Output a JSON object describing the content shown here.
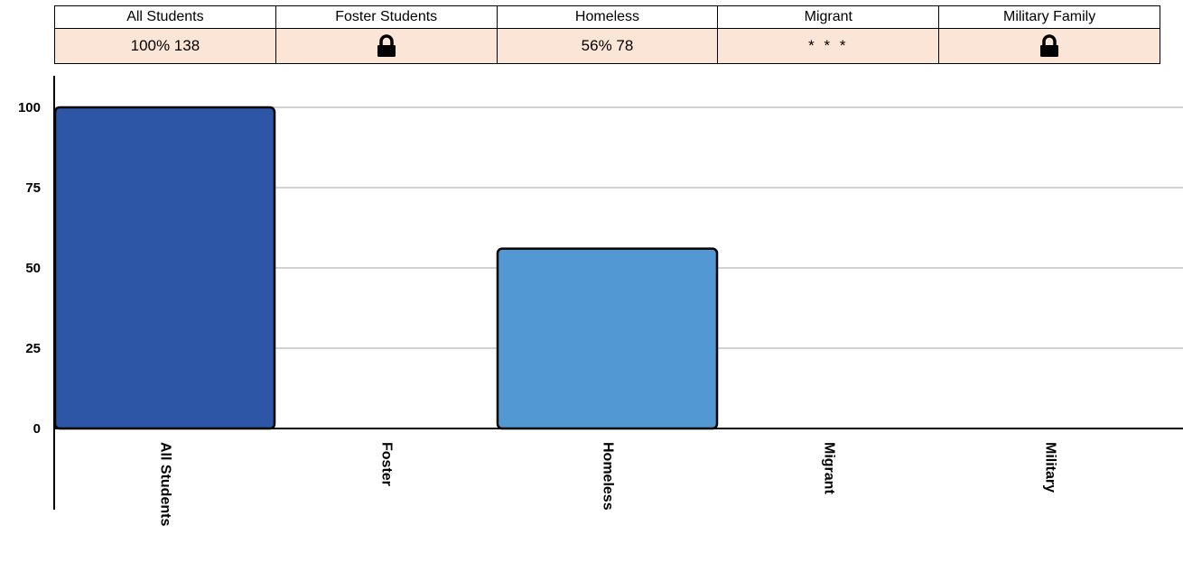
{
  "summary": {
    "headers": [
      "All Students",
      "Foster Students",
      "Homeless",
      "Migrant",
      "Military Family"
    ],
    "cells": [
      {
        "type": "text",
        "value": "100%  138"
      },
      {
        "type": "lock",
        "icon": "lock-icon"
      },
      {
        "type": "text",
        "value": "56%  78"
      },
      {
        "type": "stars",
        "value": "* * *"
      },
      {
        "type": "lock",
        "icon": "lock-icon"
      }
    ]
  },
  "chart_data": {
    "type": "bar",
    "categories": [
      "All Students",
      "Foster",
      "Homeless",
      "Migrant",
      "Military"
    ],
    "values": [
      100,
      null,
      56,
      null,
      null
    ],
    "colors": [
      "#2e56a6",
      null,
      "#5299d3",
      null,
      null
    ],
    "ylim": [
      0,
      100
    ],
    "yticks": [
      0,
      25,
      50,
      75,
      100
    ],
    "grid": true
  }
}
